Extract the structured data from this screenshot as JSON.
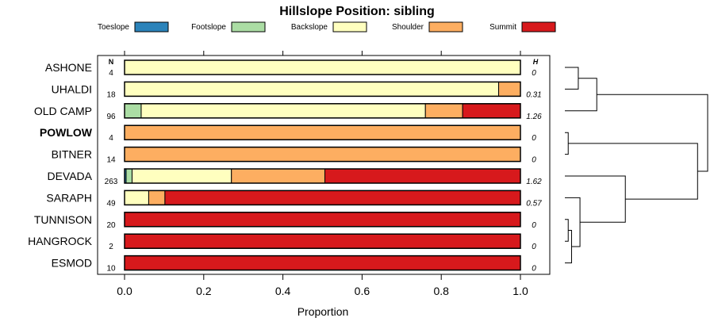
{
  "chart_data": {
    "type": "bar",
    "orientation": "horizontal",
    "stacked": true,
    "title": "Hillslope Position: sibling",
    "xlabel": "Proportion",
    "ylabel": "",
    "xlim": [
      0,
      1
    ],
    "xticks": [
      "0.0",
      "0.2",
      "0.4",
      "0.6",
      "0.8",
      "1.0"
    ],
    "n_header": "N",
    "h_header": "H",
    "series": [
      {
        "name": "Toeslope",
        "color": "#2B83BA"
      },
      {
        "name": "Footslope",
        "color": "#ABDDA4"
      },
      {
        "name": "Backslope",
        "color": "#FFFFBF"
      },
      {
        "name": "Shoulder",
        "color": "#FDAE61"
      },
      {
        "name": "Summit",
        "color": "#D7191C"
      }
    ],
    "categories": [
      "ASHONE",
      "UHALDI",
      "OLD CAMP",
      "POWLOW",
      "BITNER",
      "DEVADA",
      "SARAPH",
      "TUNNISON",
      "HANGROCK",
      "ESMOD"
    ],
    "highlight": "POWLOW",
    "rows": [
      {
        "label": "ASHONE",
        "n": "4",
        "h": "0",
        "values": [
          0,
          0,
          1.0,
          0,
          0
        ]
      },
      {
        "label": "UHALDI",
        "n": "18",
        "h": "0.31",
        "values": [
          0,
          0,
          0.945,
          0.055,
          0
        ]
      },
      {
        "label": "OLD CAMP",
        "n": "96",
        "h": "1.26",
        "values": [
          0,
          0.042,
          0.718,
          0.094,
          0.146
        ]
      },
      {
        "label": "POWLOW",
        "n": "4",
        "h": "0",
        "values": [
          0,
          0,
          0,
          1.0,
          0
        ]
      },
      {
        "label": "BITNER",
        "n": "14",
        "h": "0",
        "values": [
          0,
          0,
          0,
          1.0,
          0
        ]
      },
      {
        "label": "DEVADA",
        "n": "263",
        "h": "1.62",
        "values": [
          0.004,
          0.015,
          0.251,
          0.236,
          0.494
        ]
      },
      {
        "label": "SARAPH",
        "n": "49",
        "h": "0.57",
        "values": [
          0,
          0,
          0.061,
          0.041,
          0.898
        ]
      },
      {
        "label": "TUNNISON",
        "n": "20",
        "h": "0",
        "values": [
          0,
          0,
          0,
          0,
          1.0
        ]
      },
      {
        "label": "HANGROCK",
        "n": "2",
        "h": "0",
        "values": [
          0,
          0,
          0,
          0,
          1.0
        ]
      },
      {
        "label": "ESMOD",
        "n": "10",
        "h": "0",
        "values": [
          0,
          0,
          0,
          0,
          1.0
        ]
      }
    ],
    "dendrogram": {
      "merges": [
        {
          "a": 0,
          "b": 1,
          "height": 0.08
        },
        {
          "a": "m0",
          "b": 2,
          "height": 0.19
        },
        {
          "a": 3,
          "b": 4,
          "height": 0.02
        },
        {
          "a": 7,
          "b": 8,
          "height": 0.02
        },
        {
          "a": "m3",
          "b": 9,
          "height": 0.04
        },
        {
          "a": 6,
          "b": "m4",
          "height": 0.09
        },
        {
          "a": 5,
          "b": "m5",
          "height": 0.36
        },
        {
          "a": "m2",
          "b": "m6",
          "height": 0.79
        },
        {
          "a": "m1",
          "b": "m7",
          "height": 0.85
        }
      ]
    }
  }
}
